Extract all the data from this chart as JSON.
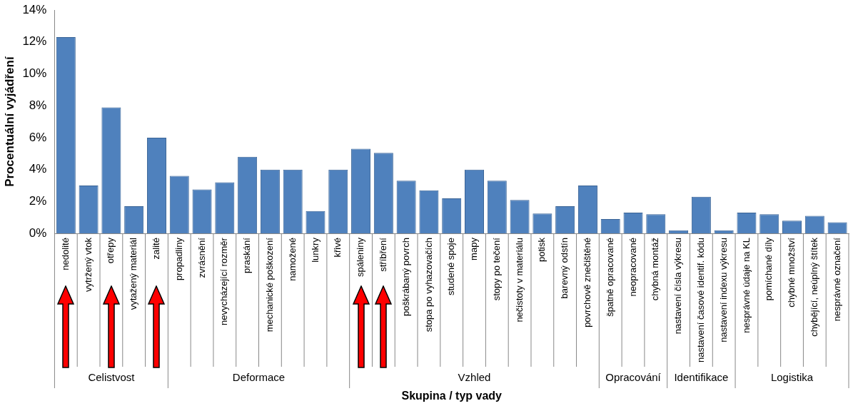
{
  "chart_data": {
    "type": "bar",
    "xlabel": "Skupina / typ vady",
    "ylabel": "Procentuální vyjádření",
    "categories": [
      "nedolité",
      "vytržený vtok",
      "otřepy",
      "vytažený materiál",
      "zalité",
      "propadliny",
      "zvrásnění",
      "nevycházející rozměr",
      "praskání",
      "mechanické poškození",
      "namožené",
      "lunkry",
      "křivé",
      "spáleniny",
      "stříbření",
      "poškrábaný povrch",
      "stopa po vyhazovačích",
      "studené spoje",
      "mapy",
      "stopy po tečení",
      "nečistoty v materiálu",
      "potisk",
      "barevný odstín",
      "povrchově znečištěné",
      "špatně opracované",
      "neopracované",
      "chybná montáž",
      "nastavení čísla výkresu",
      "nastavení časové identif. kódu",
      "nastavení indexu výkresu",
      "nesprávné údaje na KL",
      "pomíchané díly",
      "chybné množství",
      "chybějící, neúplný štítek",
      "nesprávné označení"
    ],
    "values": [
      12.3,
      3.0,
      7.9,
      1.7,
      6.0,
      3.6,
      2.75,
      3.2,
      4.8,
      4.0,
      4.0,
      1.4,
      4.0,
      5.3,
      5.05,
      3.3,
      2.7,
      2.2,
      4.0,
      3.3,
      2.1,
      1.25,
      1.7,
      3.0,
      0.9,
      1.3,
      1.2,
      0.2,
      2.3,
      0.2,
      1.3,
      1.2,
      0.8,
      1.1,
      0.7
    ],
    "color": "#4f81bd",
    "ylim": [
      0,
      14
    ],
    "yticks": [
      {
        "value": 0,
        "label": "0%"
      },
      {
        "value": 2,
        "label": "2%"
      },
      {
        "value": 4,
        "label": "4%"
      },
      {
        "value": 6,
        "label": "6%"
      },
      {
        "value": 8,
        "label": "8%"
      },
      {
        "value": 10,
        "label": "10%"
      },
      {
        "value": 12,
        "label": "12%"
      },
      {
        "value": 14,
        "label": "14%"
      }
    ],
    "annotations": [
      "Celistvost",
      "Deformace",
      "Vzhled",
      "Opracování",
      "Identifikace",
      "Logistika"
    ],
    "grid": false,
    "legend": false
  }
}
